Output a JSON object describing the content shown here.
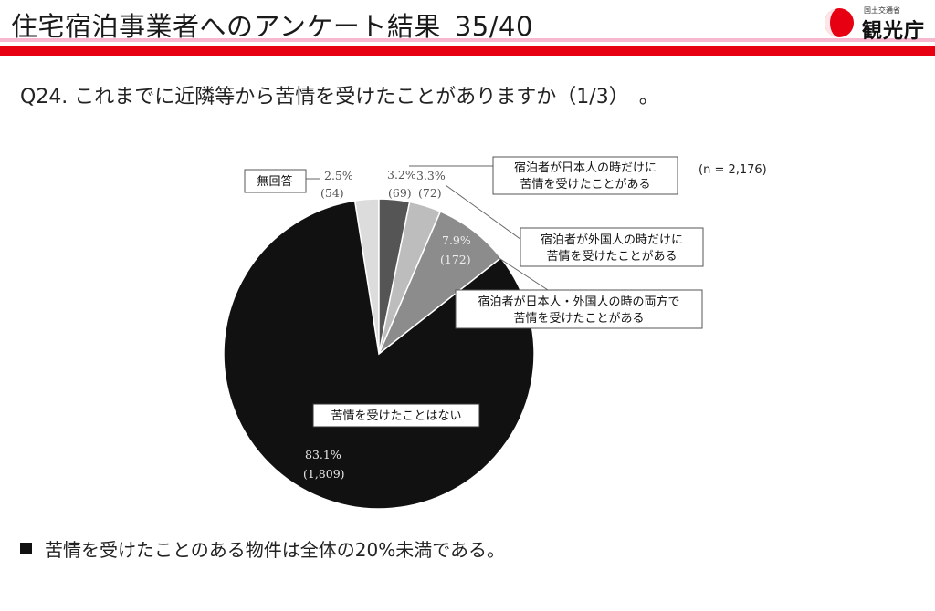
{
  "header": {
    "title": "住宅宿泊事業者へのアンケート結果_35/40",
    "logo_small_text": "国土交通省",
    "logo_name": "観光庁",
    "accent_color": "#e60012",
    "underline_color": "#f5b8cf"
  },
  "question": "Q24. これまでに近隣等から苦情を受けたことがありますか（1/3）　。",
  "chart_data": {
    "type": "pie",
    "n_label": "(n = 2,176)",
    "slices": [
      {
        "label": "無回答",
        "percent_label": "2.5%",
        "count_label": "(54)",
        "value": 54,
        "color": "#dcdcdc"
      },
      {
        "label": "宿泊者が日本人の時だけに苦情を受けたことがある",
        "percent_label": "3.2%",
        "count_label": "(69)",
        "value": 69,
        "color": "#555555"
      },
      {
        "label": "宿泊者が外国人の時だけに苦情を受けたことがある",
        "percent_label": "3.3%",
        "count_label": "(72)",
        "value": 72,
        "color": "#bdbdbd"
      },
      {
        "label": "宿泊者が日本人・外国人の時の両方で苦情を受けたことがある",
        "percent_label": "7.9%",
        "count_label": "(172)",
        "value": 172,
        "color": "#8c8c8c"
      },
      {
        "label": "苦情を受けたことはない",
        "percent_label": "83.1%",
        "count_label": "(1,809)",
        "value": 1809,
        "color": "#111111"
      }
    ],
    "callout_lines": {
      "japanese_only": [
        "宿泊者が日本人の時だけに",
        "苦情を受けたことがある"
      ],
      "foreign_only": [
        "宿泊者が外国人の時だけに",
        "苦情を受けたことがある"
      ],
      "both": [
        "宿泊者が日本人・外国人の時の両方で",
        "苦情を受けたことがある"
      ]
    }
  },
  "conclusion": "苦情を受けたことのある物件は全体の20%未満である。"
}
